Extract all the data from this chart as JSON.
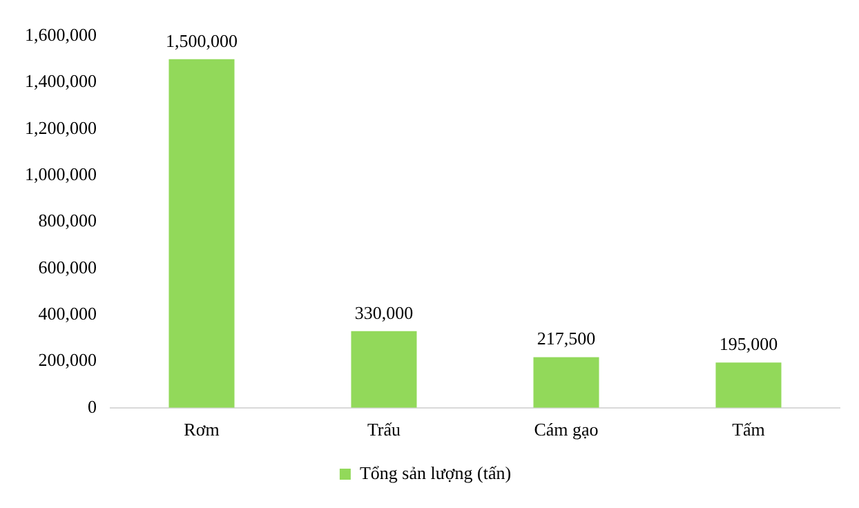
{
  "chart_data": {
    "type": "bar",
    "categories": [
      "Rơm",
      "Trấu",
      "Cám gạo",
      "Tấm"
    ],
    "series": [
      {
        "name": "Tổng sản lượng (tấn)",
        "color": "#92d95a",
        "values": [
          1500000,
          330000,
          217500,
          195000
        ],
        "value_labels": [
          "1,500,000",
          "330,000",
          "217,500",
          "195,000"
        ]
      }
    ],
    "ylim": [
      0,
      1600000
    ],
    "yticks": [
      0,
      {
        "value": 200000,
        "label": "200,000"
      },
      {
        "value": 400000,
        "label": "400,000"
      },
      {
        "value": 600000,
        "label": "600,000"
      },
      {
        "value": 800000,
        "label": "800,000"
      },
      {
        "value": 1000000,
        "label": "1,000,000"
      },
      {
        "value": 1200000,
        "label": "1,200,000"
      },
      {
        "value": 1400000,
        "label": "1,400,000"
      },
      {
        "value": 1600000,
        "label": "1,600,000"
      }
    ],
    "grid": false,
    "legend": "bottom"
  }
}
